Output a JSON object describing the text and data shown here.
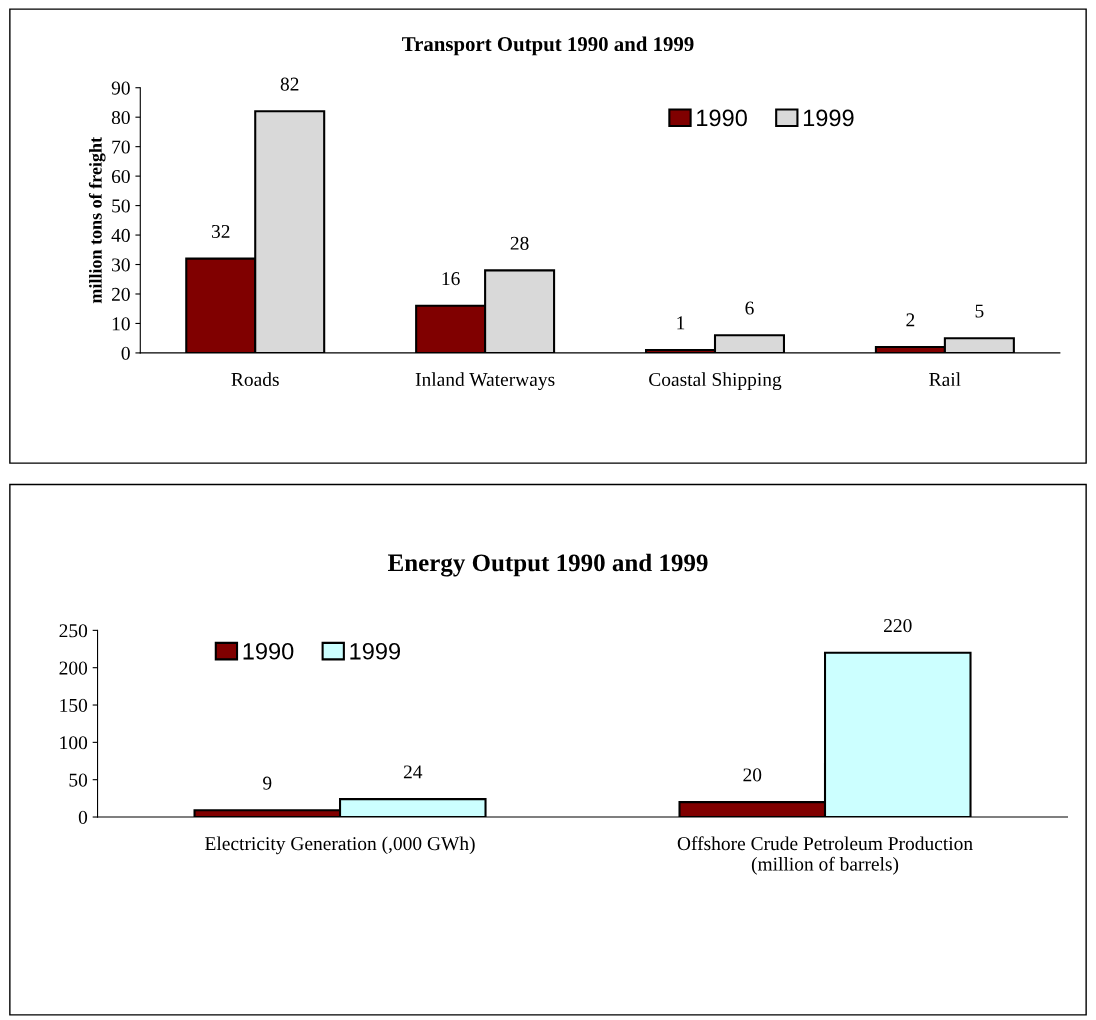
{
  "chart_data": [
    {
      "type": "bar",
      "title": "Transport Output 1990 and 1999",
      "ylabel": "million tons of freight",
      "categories": [
        "Roads",
        "Inland Waterways",
        "Coastal Shipping",
        "Rail"
      ],
      "series": [
        {
          "name": "1990",
          "color": "#800000",
          "values": [
            32,
            16,
            1,
            2
          ]
        },
        {
          "name": "1999",
          "color": "#d9d9d9",
          "values": [
            82,
            28,
            6,
            5
          ]
        }
      ],
      "ylim": [
        0,
        90
      ],
      "yticks": [
        0,
        10,
        20,
        30,
        40,
        50,
        60,
        70,
        80,
        90
      ],
      "data_labels": true,
      "legend": "top right",
      "grid": false
    },
    {
      "type": "bar",
      "title": "Energy Output 1990 and 1999",
      "categories": [
        "Electricity Generation (,000 GWh)",
        "Offshore Crude Petroleum Production\n(million of barrels)"
      ],
      "series": [
        {
          "name": "1990",
          "color": "#800000",
          "values": [
            9,
            20
          ]
        },
        {
          "name": "1999",
          "color": "#ccffff",
          "values": [
            24,
            220
          ]
        }
      ],
      "ylim": [
        0,
        250
      ],
      "yticks": [
        0,
        50,
        100,
        150,
        200,
        250
      ],
      "data_labels": true,
      "legend": "top left",
      "grid": false
    }
  ]
}
